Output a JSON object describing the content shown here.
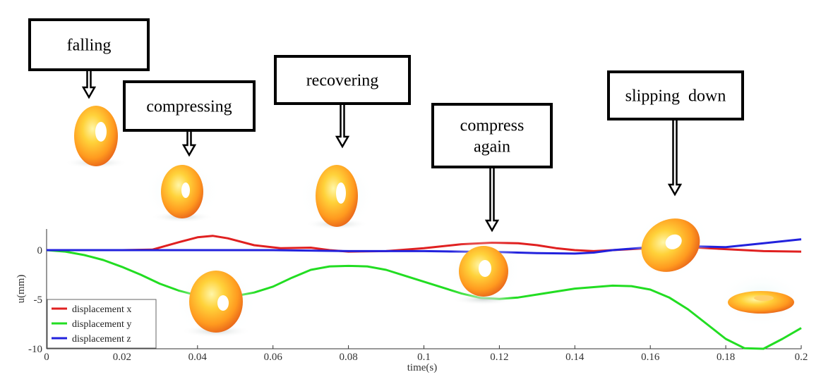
{
  "chart_data": {
    "type": "line",
    "xlabel": "time(s)",
    "ylabel": "u(mm)",
    "xlim": [
      0,
      0.2
    ],
    "ylim": [
      -10,
      2
    ],
    "xticks": [
      "0",
      "0.02",
      "0.04",
      "0.06",
      "0.08",
      "0.1",
      "0.12",
      "0.14",
      "0.16",
      "0.18",
      "0.2"
    ],
    "yticks": [
      "0",
      "-5",
      "-10"
    ],
    "grid": false,
    "legend_position": "bottom-left",
    "series": [
      {
        "name": "displacement x",
        "color": "#e02020",
        "points": [
          [
            0,
            0
          ],
          [
            0.02,
            0
          ],
          [
            0.028,
            0.05
          ],
          [
            0.035,
            0.8
          ],
          [
            0.04,
            1.3
          ],
          [
            0.044,
            1.45
          ],
          [
            0.048,
            1.2
          ],
          [
            0.055,
            0.5
          ],
          [
            0.062,
            0.2
          ],
          [
            0.07,
            0.25
          ],
          [
            0.075,
            0.0
          ],
          [
            0.08,
            -0.15
          ],
          [
            0.09,
            -0.1
          ],
          [
            0.1,
            0.2
          ],
          [
            0.11,
            0.6
          ],
          [
            0.118,
            0.75
          ],
          [
            0.125,
            0.7
          ],
          [
            0.13,
            0.5
          ],
          [
            0.135,
            0.2
          ],
          [
            0.14,
            0.0
          ],
          [
            0.145,
            -0.1
          ],
          [
            0.15,
            0.0
          ],
          [
            0.16,
            0.2
          ],
          [
            0.17,
            0.3
          ],
          [
            0.18,
            0.1
          ],
          [
            0.19,
            -0.1
          ],
          [
            0.2,
            -0.15
          ]
        ]
      },
      {
        "name": "displacement y",
        "color": "#22dd22",
        "points": [
          [
            0,
            0
          ],
          [
            0.005,
            -0.15
          ],
          [
            0.01,
            -0.5
          ],
          [
            0.015,
            -1.0
          ],
          [
            0.02,
            -1.7
          ],
          [
            0.025,
            -2.5
          ],
          [
            0.03,
            -3.4
          ],
          [
            0.035,
            -4.1
          ],
          [
            0.04,
            -4.6
          ],
          [
            0.045,
            -4.75
          ],
          [
            0.05,
            -4.65
          ],
          [
            0.055,
            -4.3
          ],
          [
            0.06,
            -3.7
          ],
          [
            0.065,
            -2.8
          ],
          [
            0.07,
            -2.0
          ],
          [
            0.075,
            -1.65
          ],
          [
            0.08,
            -1.6
          ],
          [
            0.085,
            -1.65
          ],
          [
            0.09,
            -2.0
          ],
          [
            0.095,
            -2.6
          ],
          [
            0.1,
            -3.2
          ],
          [
            0.105,
            -3.8
          ],
          [
            0.11,
            -4.4
          ],
          [
            0.115,
            -4.85
          ],
          [
            0.12,
            -4.95
          ],
          [
            0.125,
            -4.8
          ],
          [
            0.13,
            -4.5
          ],
          [
            0.14,
            -3.9
          ],
          [
            0.15,
            -3.6
          ],
          [
            0.155,
            -3.65
          ],
          [
            0.16,
            -4.0
          ],
          [
            0.165,
            -4.8
          ],
          [
            0.17,
            -6.0
          ],
          [
            0.175,
            -7.5
          ],
          [
            0.18,
            -9.0
          ],
          [
            0.185,
            -9.95
          ],
          [
            0.19,
            -10.0
          ],
          [
            0.195,
            -9.0
          ],
          [
            0.2,
            -7.9
          ]
        ]
      },
      {
        "name": "displacement z",
        "color": "#2222dd",
        "points": [
          [
            0,
            0
          ],
          [
            0.04,
            0
          ],
          [
            0.06,
            0.0
          ],
          [
            0.08,
            -0.1
          ],
          [
            0.1,
            -0.1
          ],
          [
            0.11,
            -0.15
          ],
          [
            0.12,
            -0.2
          ],
          [
            0.13,
            -0.3
          ],
          [
            0.14,
            -0.35
          ],
          [
            0.145,
            -0.25
          ],
          [
            0.15,
            0.0
          ],
          [
            0.16,
            0.3
          ],
          [
            0.17,
            0.4
          ],
          [
            0.18,
            0.3
          ],
          [
            0.19,
            0.7
          ],
          [
            0.2,
            1.1
          ]
        ]
      }
    ]
  },
  "annotations": [
    {
      "id": "falling",
      "lines": [
        "falling"
      ]
    },
    {
      "id": "compressing",
      "lines": [
        "compressing"
      ]
    },
    {
      "id": "recovering",
      "lines": [
        "recovering"
      ]
    },
    {
      "id": "compress-again",
      "lines": [
        "compress",
        "again"
      ]
    },
    {
      "id": "slipping-down",
      "lines": [
        "slipping  down"
      ]
    }
  ]
}
